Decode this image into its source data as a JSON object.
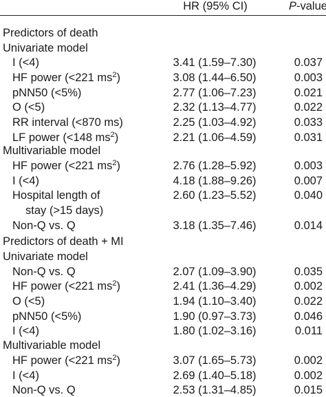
{
  "header": {
    "hr": "HR (95% CI)",
    "p_italic": "P",
    "p_rest": "-value"
  },
  "rows": [
    {
      "type": "section",
      "label": "Predictors of death"
    },
    {
      "type": "section",
      "label": "Univariate model"
    },
    {
      "type": "row",
      "label": "I (<4)",
      "hr": "3.41 (1.59–7.30)",
      "p": "0.037"
    },
    {
      "type": "row",
      "label": "HF power (<221 ms",
      "sup": "2",
      "tail": ")",
      "hr": "3.08 (1.44–6.50)",
      "p": "0.003"
    },
    {
      "type": "row",
      "label": "pNN50 (<5%)",
      "hr": "2.77 (1.06–7.23)",
      "p": "0.021"
    },
    {
      "type": "row",
      "label": "O (<5)",
      "hr": "2.32 (1.13–4.77)",
      "p": "0.022"
    },
    {
      "type": "row",
      "label": "RR interval (<870 ms)",
      "hr": "2.25 (1.03–4.92)",
      "p": "0.033"
    },
    {
      "type": "row",
      "label": "LF power (<148 ms",
      "sup": "2",
      "tail": ")",
      "hr": "2.21 (1.06–4.59)",
      "p": "0.031"
    },
    {
      "type": "section",
      "label": "Multivariable model"
    },
    {
      "type": "row",
      "label": "HF power (<221 ms",
      "sup": "2",
      "tail": ")",
      "hr": "2.76 (1.28–5.92)",
      "p": "0.003"
    },
    {
      "type": "row",
      "label": "I (<4)",
      "hr": "4.18 (1.88–9.26)",
      "p": "0.007"
    },
    {
      "type": "row",
      "label": "Hospital length of",
      "hr": "2.60 (1.23–5.52)",
      "p": "0.040"
    },
    {
      "type": "cont",
      "label": "stay (>15 days)"
    },
    {
      "type": "row",
      "label": "Non-Q vs. Q",
      "hr": "3.18 (1.35–7.46)",
      "p": "0.014"
    },
    {
      "type": "section",
      "label": "Predictors of death + MI"
    },
    {
      "type": "section",
      "label": "Univariate model"
    },
    {
      "type": "row",
      "label": "Non-Q vs. Q",
      "hr": "2.07 (1.09–3.90)",
      "p": "0.035"
    },
    {
      "type": "row",
      "label": "HF power (<221 ms",
      "sup": "2",
      "tail": ")",
      "hr": "2.41 (1.36–4.29)",
      "p": "0.002"
    },
    {
      "type": "row",
      "label": "O (<5)",
      "hr": "1.94 (1.10–3.40)",
      "p": "0.022"
    },
    {
      "type": "row",
      "label": "pNN50 (<5%)",
      "hr": "1.90 (0.97–3.73)",
      "p": "0.046"
    },
    {
      "type": "row",
      "label": "I (<4)",
      "hr": "1.80 (1.02–3.16)",
      "p": "0.011"
    },
    {
      "type": "section",
      "label": "Multivariable model"
    },
    {
      "type": "row",
      "label": "HF power (<221 ms",
      "sup": "2",
      "tail": ")",
      "hr": "3.07 (1.65–5.73)",
      "p": "0.002"
    },
    {
      "type": "row",
      "label": "I (<4)",
      "hr": "2.69 (1.40–5.18)",
      "p": "0.002"
    },
    {
      "type": "row",
      "label": "Non-Q vs. Q",
      "hr": "2.53 (1.31–4.85)",
      "p": "0.015"
    }
  ]
}
